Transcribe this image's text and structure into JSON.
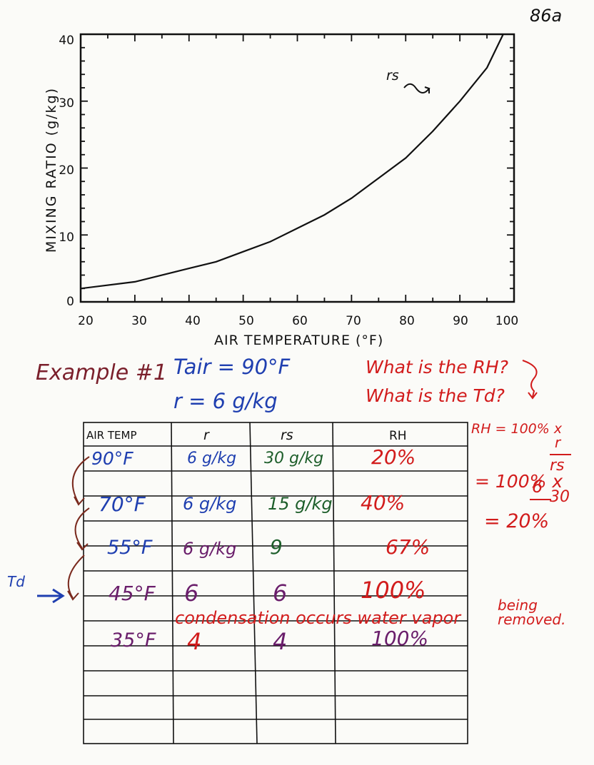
{
  "page_number": "86a",
  "chart_data": {
    "type": "line",
    "title": "",
    "xlabel": "AIR TEMPERATURE (°F)",
    "ylabel": "MIXING RATIO (g/kg)",
    "xlim": [
      20,
      100
    ],
    "ylim": [
      0,
      40
    ],
    "x_ticks": [
      "20",
      "30",
      "40",
      "50",
      "60",
      "70",
      "80",
      "90",
      "100"
    ],
    "y_ticks": [
      "0",
      "10",
      "20",
      "30",
      "40"
    ],
    "series": [
      {
        "name": "rs",
        "x": [
          20,
          30,
          40,
          45,
          50,
          55,
          60,
          65,
          70,
          75,
          80,
          85,
          90,
          95,
          98
        ],
        "y": [
          2,
          3,
          5,
          6,
          7.5,
          9,
          11,
          13,
          15.5,
          18.5,
          21.5,
          25.5,
          30,
          35,
          40
        ]
      }
    ],
    "annotation": "rs"
  },
  "example": {
    "title": "Example #1",
    "tair": "Tair = 90°F",
    "r": "r = 6 g/kg",
    "question_rh": "What is the RH?",
    "question_td": "What is the Td?"
  },
  "table": {
    "headers": [
      "AIR TEMP",
      "r",
      "rs",
      "RH"
    ],
    "rows": [
      {
        "temp": "90°F",
        "r": "6 g/kg",
        "rs": "30 g/kg",
        "rh": "20%"
      },
      {
        "temp": "70°F",
        "r": "6 g/kg",
        "rs": "15 g/kg",
        "rh": "40%"
      },
      {
        "temp": "55°F",
        "r": "6 g/kg",
        "rs": "9",
        "rh": "67%"
      },
      {
        "temp": "45°F",
        "r": "6",
        "rs": "6",
        "rh": "100%"
      },
      {
        "temp": "35°F",
        "r": "4",
        "rs": "4",
        "rh": "100%"
      }
    ],
    "condensation_note": "condensation occurs water vapor",
    "being_removed": "being removed."
  },
  "formula": {
    "line1": "RH = 100% x",
    "r_num": "r",
    "rs_den": "rs",
    "line2": "= 100% x",
    "six": "6",
    "thirty": "30",
    "line3": "= 20%"
  },
  "td_label": "Td",
  "colors": {
    "ink": "#111111",
    "blue": "#1f3fb0",
    "red": "#d21c1c",
    "green": "#1d5e2a",
    "purple": "#6a1e6b",
    "brown": "#7a2a1e"
  }
}
